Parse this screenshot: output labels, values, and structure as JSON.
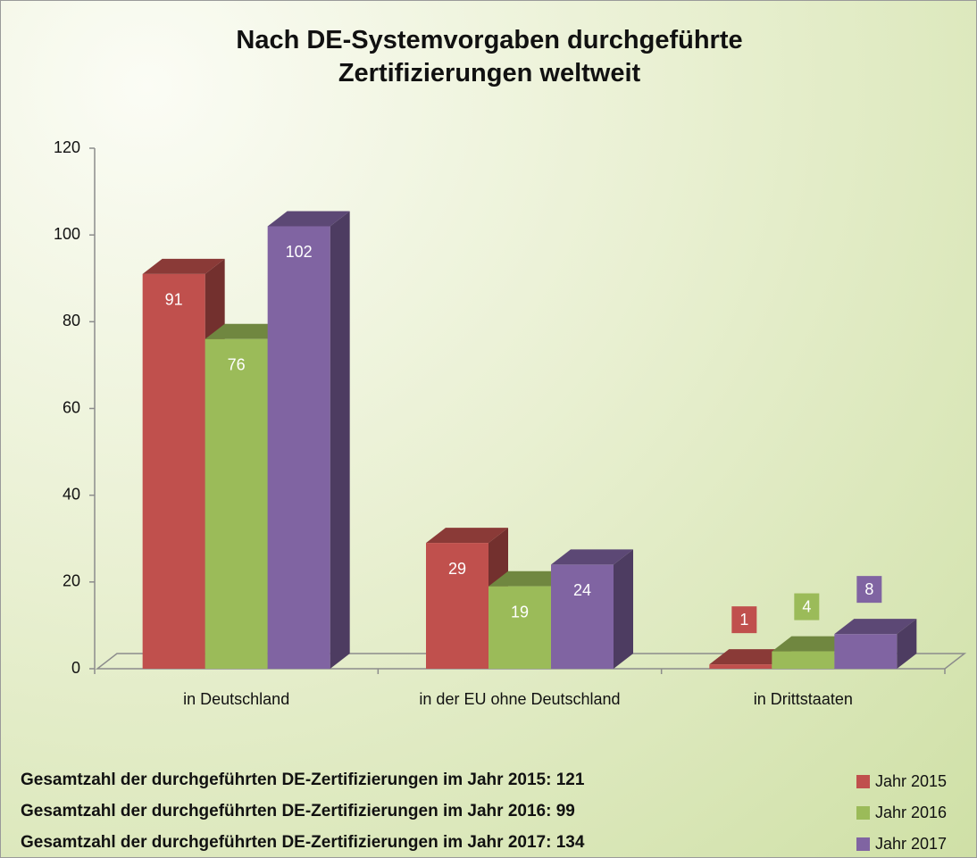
{
  "chart_data": {
    "type": "bar3d",
    "title": "Nach DE-Systemvorgaben durchgeführte Zertifizierungen weltweit",
    "categories": [
      "in Deutschland",
      "in der EU ohne Deutschland",
      "in Drittstaaten"
    ],
    "series": [
      {
        "name": "Jahr 2015",
        "color": "#c0504d",
        "values": [
          91,
          29,
          1
        ]
      },
      {
        "name": "Jahr 2016",
        "color": "#9bbb59",
        "values": [
          76,
          19,
          4
        ]
      },
      {
        "name": "Jahr 2017",
        "color": "#8064a2",
        "values": [
          102,
          24,
          8
        ]
      }
    ],
    "ylim": [
      0,
      120
    ],
    "yticks": [
      0,
      20,
      40,
      60,
      80,
      100,
      120
    ],
    "legend": "bottom-right",
    "annotations": [
      "Gesamtzahl der durchgeführten DE-Zertifizierungen im Jahr 2015: 121",
      "Gesamtzahl der durchgeführten DE-Zertifizierungen im Jahr 2016: 99",
      "Gesamtzahl der durchgeführten DE-Zertifizierungen im Jahr 2017: 134"
    ]
  }
}
